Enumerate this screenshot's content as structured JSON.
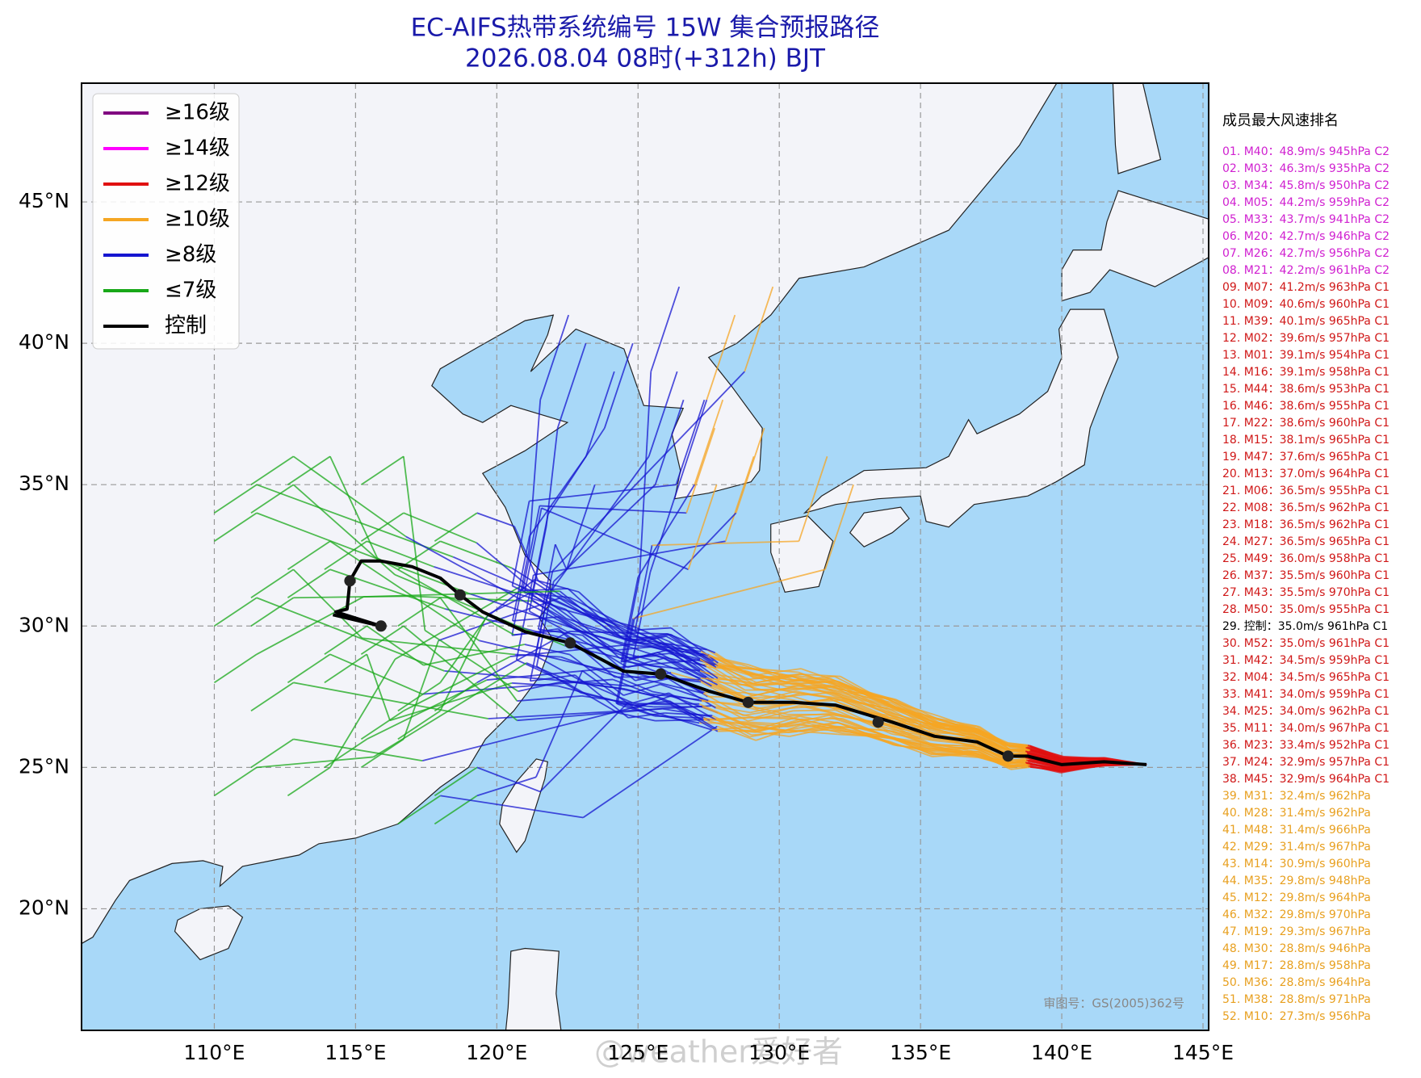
{
  "map": {
    "title": "EC-AIFS热带系统编号 15W 集合预报路径",
    "subtitle": "2026.08.04 08时(+312h) BJT",
    "xlim": [
      105.3,
      145.2
    ],
    "ylim": [
      15.7,
      49.2
    ],
    "xticks": [
      {
        "value": 110,
        "label": "110°E"
      },
      {
        "value": 115,
        "label": "115°E"
      },
      {
        "value": 120,
        "label": "120°E"
      },
      {
        "value": 125,
        "label": "125°E"
      },
      {
        "value": 130,
        "label": "130°E"
      },
      {
        "value": 135,
        "label": "135°E"
      },
      {
        "value": 140,
        "label": "140°E"
      },
      {
        "value": 145,
        "label": "145°E"
      }
    ],
    "yticks": [
      {
        "value": 20,
        "label": "20°N"
      },
      {
        "value": 25,
        "label": "25°N"
      },
      {
        "value": 30,
        "label": "30°N"
      },
      {
        "value": 35,
        "label": "35°N"
      },
      {
        "value": 40,
        "label": "40°N"
      },
      {
        "value": 45,
        "label": "45°N"
      }
    ],
    "grid": true,
    "legend": [
      {
        "name": "≥16级",
        "color": "#800080"
      },
      {
        "name": "≥14级",
        "color": "#ff00ff"
      },
      {
        "name": "≥12级",
        "color": "#e01010"
      },
      {
        "name": "≥10级",
        "color": "#f5a623"
      },
      {
        "name": "≥8级",
        "color": "#1515d0"
      },
      {
        "name": "≤7级",
        "color": "#18a818"
      },
      {
        "name": "控制",
        "color": "#000000"
      }
    ],
    "credit": "审图号：GS(2005)362号",
    "watermark": "@weather爱好者"
  },
  "ranking": {
    "title": "成员最大风速排名",
    "groups": [
      {
        "color": "#d020d0",
        "items": [
          "01. M40：48.9m/s 945hPa C2",
          "02. M03：46.3m/s 935hPa C2",
          "03. M34：45.8m/s 950hPa C2",
          "04. M05：44.2m/s 959hPa C2",
          "05. M33：43.7m/s 941hPa C2",
          "06. M20：42.7m/s 946hPa C2",
          "07. M26：42.7m/s 956hPa C2",
          "08. M21：42.2m/s 961hPa C2"
        ]
      },
      {
        "color": "#d01818",
        "items": [
          "09. M07：41.2m/s 963hPa C1",
          "10. M09：40.6m/s 960hPa C1",
          "11. M39：40.1m/s 965hPa C1",
          "12. M02：39.6m/s 957hPa C1",
          "13. M01：39.1m/s 954hPa C1",
          "14. M16：39.1m/s 958hPa C1",
          "15. M44：38.6m/s 953hPa C1",
          "16. M46：38.6m/s 955hPa C1",
          "17. M22：38.6m/s 960hPa C1",
          "18. M15：38.1m/s 965hPa C1",
          "19. M47：37.6m/s 965hPa C1",
          "20. M13：37.0m/s 964hPa C1",
          "21. M06：36.5m/s 955hPa C1",
          "22. M08：36.5m/s 962hPa C1",
          "23. M18：36.5m/s 962hPa C1",
          "24. M27：36.5m/s 965hPa C1",
          "25. M49：36.0m/s 958hPa C1",
          "26. M37：35.5m/s 960hPa C1",
          "27. M43：35.5m/s 970hPa C1",
          "28. M50：35.0m/s 955hPa C1"
        ]
      },
      {
        "color": "#000000",
        "items": [
          "29. 控制：35.0m/s 961hPa C1"
        ]
      },
      {
        "color": "#d01818",
        "items": [
          "30. M52：35.0m/s 961hPa C1",
          "31. M42：34.5m/s 959hPa C1",
          "32. M04：34.5m/s 965hPa C1",
          "33. M41：34.0m/s 959hPa C1",
          "34. M25：34.0m/s 962hPa C1",
          "35. M11：34.0m/s 967hPa C1",
          "36. M23：33.4m/s 952hPa C1",
          "37. M24：32.9m/s 957hPa C1",
          "38. M45：32.9m/s 964hPa C1"
        ]
      },
      {
        "color": "#e8a020",
        "items": [
          "39. M31：32.4m/s 962hPa",
          "40. M28：31.4m/s 962hPa",
          "41. M48：31.4m/s 966hPa",
          "42. M29：31.4m/s 967hPa",
          "43. M14：30.9m/s 960hPa",
          "44. M35：29.8m/s 948hPa",
          "45. M12：29.8m/s 964hPa",
          "46. M32：29.8m/s 970hPa",
          "47. M19：29.3m/s 967hPa",
          "48. M30：28.8m/s 946hPa",
          "49. M17：28.8m/s 958hPa",
          "50. M36：28.8m/s 964hPa",
          "51. M38：28.8m/s 971hPa",
          "52. M10：27.3m/s 956hPa"
        ]
      }
    ]
  }
}
